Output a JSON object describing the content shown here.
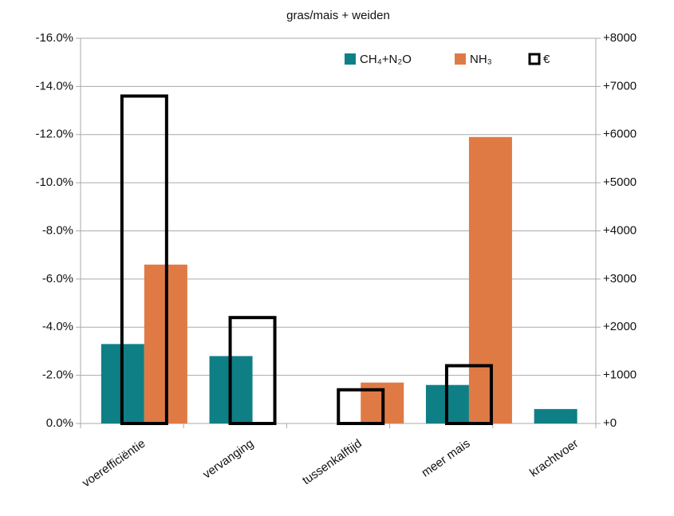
{
  "chart_data": {
    "type": "bar",
    "title": "gras/mais + weiden",
    "categories": [
      "voerefficiëntie",
      "vervanging",
      "tussenkalftijd",
      "meer mais",
      "krachtvoer"
    ],
    "series": [
      {
        "name": "CH₄+N₂O",
        "color": "#0f7f86",
        "values": [
          -3.3,
          -2.8,
          null,
          -1.6,
          -0.6
        ]
      },
      {
        "name": "NH₃",
        "color": "#e07a45",
        "values": [
          -6.6,
          null,
          -1.7,
          -11.9,
          null
        ]
      },
      {
        "name": "€",
        "color": "#000000",
        "axis": "y2",
        "values": [
          6800,
          2200,
          700,
          1200,
          null
        ]
      }
    ],
    "ylim": [
      0,
      -16
    ],
    "yticks": [
      {
        "value": 0,
        "label": "0.0%"
      },
      {
        "value": -2,
        "label": "-2.0%"
      },
      {
        "value": -4,
        "label": "-4.0%"
      },
      {
        "value": -6,
        "label": "-6.0%"
      },
      {
        "value": -8,
        "label": "-8.0%"
      },
      {
        "value": -10,
        "label": "-10.0%"
      },
      {
        "value": -12,
        "label": "-12.0%"
      },
      {
        "value": -14,
        "label": "-14.0%"
      },
      {
        "value": -16,
        "label": "-16.0%"
      }
    ],
    "y2lim": [
      0,
      8000
    ],
    "y2ticks": [
      {
        "value": 0,
        "label": "+0"
      },
      {
        "value": 1000,
        "label": "+1000"
      },
      {
        "value": 2000,
        "label": "+2000"
      },
      {
        "value": 3000,
        "label": "+3000"
      },
      {
        "value": 4000,
        "label": "+4000"
      },
      {
        "value": 5000,
        "label": "+5000"
      },
      {
        "value": 6000,
        "label": "+6000"
      },
      {
        "value": 7000,
        "label": "+7000"
      },
      {
        "value": 8000,
        "label": "+8000"
      }
    ],
    "grid": true
  }
}
